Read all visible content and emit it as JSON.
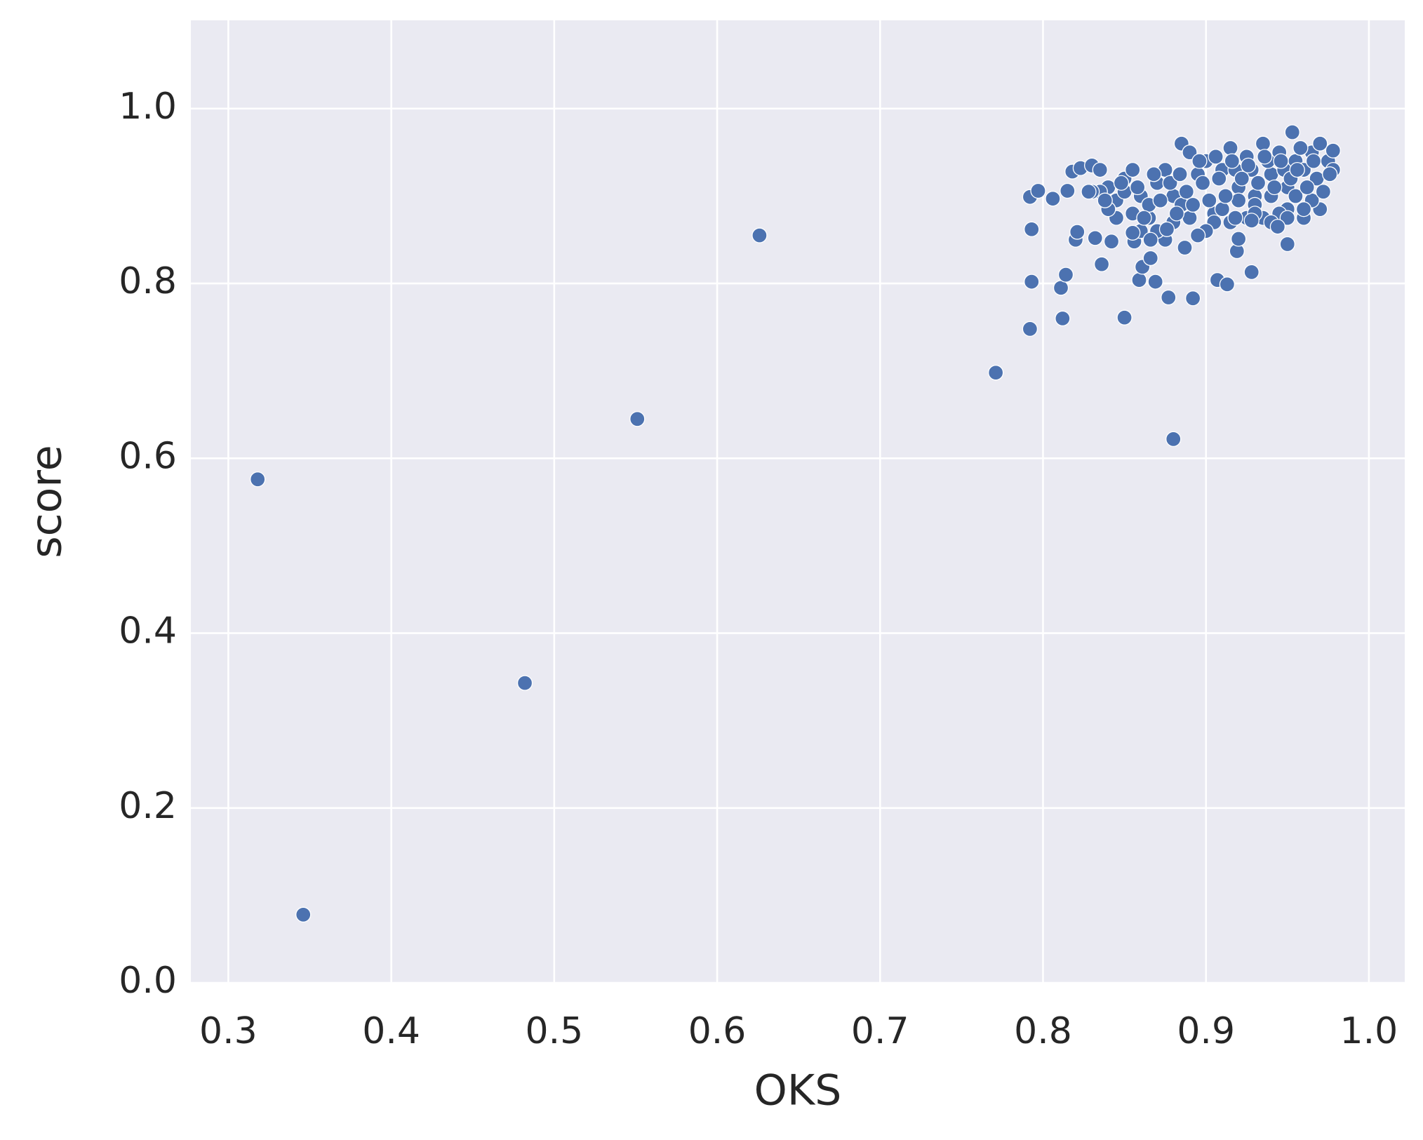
{
  "chart_data": {
    "type": "scatter",
    "xlabel": "OKS",
    "ylabel": "score",
    "color": "#4c72b0",
    "grid": true,
    "xlim": [
      0.277,
      1.022
    ],
    "ylim": [
      0,
      1.101
    ],
    "xticks": [
      0.3,
      0.4,
      0.5,
      0.6,
      0.7,
      0.8,
      0.9,
      {
        "value": 1,
        "label": "1.0"
      }
    ],
    "yticks": [
      {
        "value": 0,
        "label": "0.0"
      },
      0.2,
      0.4,
      0.6,
      0.8,
      {
        "value": 1,
        "label": "1.0"
      }
    ],
    "x": [
      0.318,
      0.346,
      0.482,
      0.551,
      0.626,
      0.771,
      0.792,
      0.793,
      0.812,
      0.811,
      0.814,
      0.85,
      0.877,
      0.88,
      0.892,
      0.907,
      0.913,
      0.928,
      0.793,
      0.792,
      0.797,
      0.806,
      0.815,
      0.82,
      0.821,
      0.818,
      0.823,
      0.832,
      0.836,
      0.842,
      0.856,
      0.859,
      0.861,
      0.866,
      0.869,
      0.887,
      0.919,
      0.92,
      0.95,
      0.83,
      0.835,
      0.84,
      0.845,
      0.85,
      0.855,
      0.86,
      0.865,
      0.87,
      0.875,
      0.88,
      0.885,
      0.89,
      0.895,
      0.9,
      0.905,
      0.91,
      0.915,
      0.92,
      0.925,
      0.93,
      0.935,
      0.94,
      0.945,
      0.95,
      0.953,
      0.955,
      0.96,
      0.965,
      0.97,
      0.975,
      0.978,
      0.978,
      0.97,
      0.965,
      0.96,
      0.955,
      0.95,
      0.945,
      0.94,
      0.935,
      0.93,
      0.925,
      0.92,
      0.915,
      0.91,
      0.905,
      0.9,
      0.895,
      0.89,
      0.885,
      0.88,
      0.875,
      0.87,
      0.865,
      0.86,
      0.855,
      0.85,
      0.845,
      0.84,
      0.835,
      0.83,
      0.828,
      0.838,
      0.848,
      0.858,
      0.868,
      0.878,
      0.888,
      0.898,
      0.908,
      0.918,
      0.928,
      0.938,
      0.948,
      0.958,
      0.968,
      0.972,
      0.962,
      0.952,
      0.942,
      0.932,
      0.922,
      0.912,
      0.902,
      0.892,
      0.882,
      0.872,
      0.862,
      0.884,
      0.896,
      0.906,
      0.916,
      0.926,
      0.936,
      0.946,
      0.956,
      0.966,
      0.976,
      0.93,
      0.94,
      0.95,
      0.96,
      0.855,
      0.866,
      0.876,
      0.918,
      0.928,
      0.944
    ],
    "values": [
      0.576,
      0.078,
      0.343,
      0.645,
      0.855,
      0.698,
      0.748,
      0.802,
      0.76,
      0.795,
      0.81,
      0.761,
      0.784,
      0.622,
      0.783,
      0.804,
      0.799,
      0.813,
      0.862,
      0.899,
      0.906,
      0.897,
      0.906,
      0.85,
      0.859,
      0.928,
      0.932,
      0.852,
      0.822,
      0.848,
      0.848,
      0.804,
      0.819,
      0.829,
      0.802,
      0.841,
      0.837,
      0.851,
      0.845,
      0.935,
      0.93,
      0.91,
      0.895,
      0.92,
      0.93,
      0.9,
      0.875,
      0.915,
      0.93,
      0.9,
      0.96,
      0.95,
      0.925,
      0.94,
      0.88,
      0.93,
      0.955,
      0.91,
      0.945,
      0.9,
      0.96,
      0.925,
      0.95,
      0.91,
      0.973,
      0.94,
      0.93,
      0.95,
      0.96,
      0.94,
      0.952,
      0.93,
      0.885,
      0.895,
      0.875,
      0.9,
      0.885,
      0.88,
      0.9,
      0.875,
      0.89,
      0.875,
      0.895,
      0.87,
      0.885,
      0.87,
      0.86,
      0.855,
      0.875,
      0.89,
      0.87,
      0.85,
      0.86,
      0.89,
      0.86,
      0.88,
      0.905,
      0.875,
      0.885,
      0.905,
      0.905,
      0.905,
      0.895,
      0.915,
      0.91,
      0.925,
      0.915,
      0.905,
      0.915,
      0.92,
      0.93,
      0.93,
      0.94,
      0.93,
      0.955,
      0.92,
      0.905,
      0.91,
      0.92,
      0.91,
      0.915,
      0.92,
      0.9,
      0.895,
      0.89,
      0.88,
      0.895,
      0.875,
      0.925,
      0.94,
      0.945,
      0.94,
      0.935,
      0.945,
      0.94,
      0.93,
      0.94,
      0.925,
      0.88,
      0.87,
      0.875,
      0.885,
      0.858,
      0.85,
      0.862,
      0.875,
      0.872,
      0.865
    ]
  }
}
